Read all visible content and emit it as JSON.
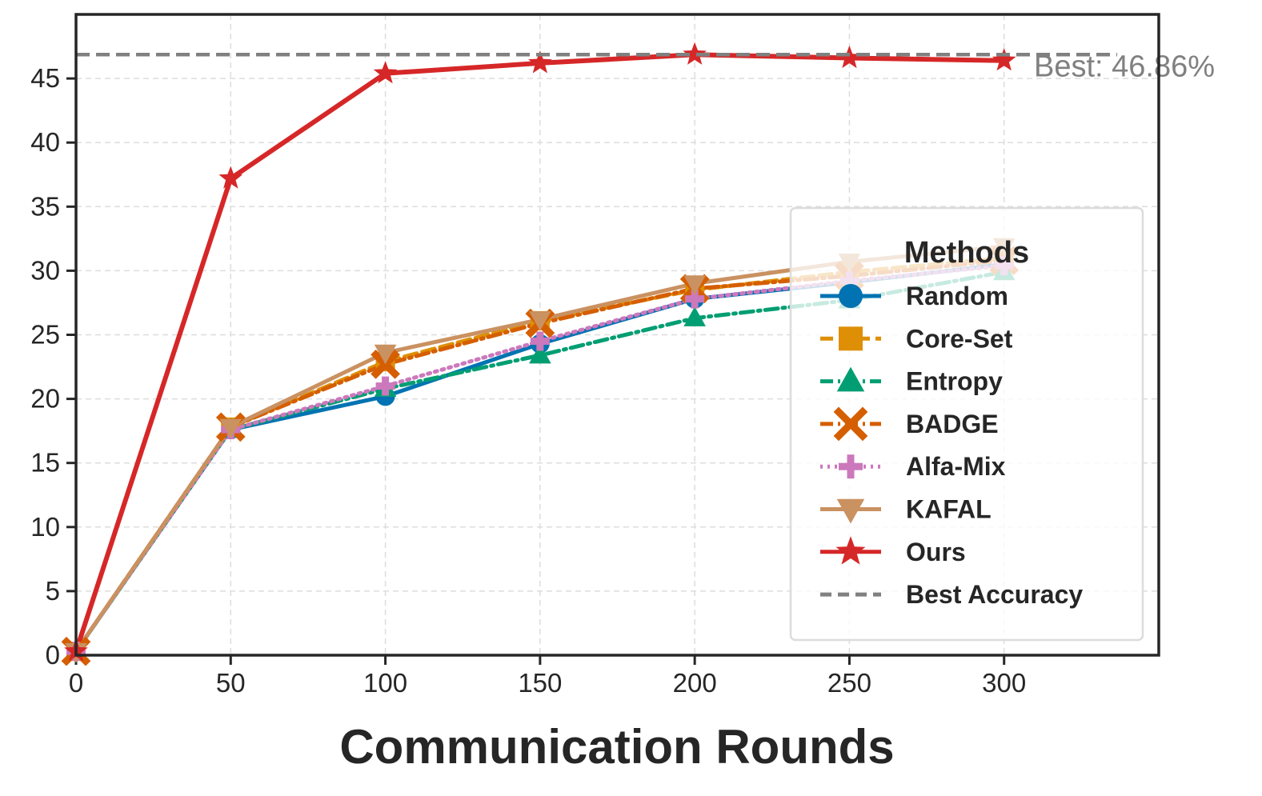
{
  "chart_data": {
    "type": "line",
    "title": "",
    "xlabel": "Communication Rounds",
    "ylabel": "",
    "xlim": [
      0,
      350
    ],
    "ylim": [
      0,
      50
    ],
    "xticks": [
      0,
      50,
      100,
      150,
      200,
      250,
      300
    ],
    "yticks": [
      0,
      5,
      10,
      15,
      20,
      25,
      30,
      35,
      40,
      45
    ],
    "grid": true,
    "x": [
      0,
      50,
      100,
      150,
      200,
      250,
      300
    ],
    "series": [
      {
        "name": "Random",
        "color": "#0173b2",
        "marker": "circle",
        "dash": "solid",
        "values": [
          0.3,
          17.6,
          20.2,
          24.3,
          27.8,
          29.1,
          30.5
        ]
      },
      {
        "name": "Core-Set",
        "color": "#de8f05",
        "marker": "square",
        "dash": "dashed",
        "values": [
          0.3,
          17.8,
          22.9,
          26.1,
          28.5,
          29.9,
          31.0
        ]
      },
      {
        "name": "Entropy",
        "color": "#029e73",
        "marker": "triangle-up",
        "dash": "dashdot",
        "values": [
          0.3,
          17.6,
          20.8,
          23.4,
          26.3,
          27.7,
          29.9
        ]
      },
      {
        "name": "BADGE",
        "color": "#d55e00",
        "marker": "x",
        "dash": "dashdot",
        "values": [
          0.3,
          17.8,
          22.7,
          25.9,
          28.6,
          29.6,
          30.8
        ]
      },
      {
        "name": "Alfa-Mix",
        "color": "#cc78bc",
        "marker": "plus",
        "dash": "dotted",
        "values": [
          0.3,
          17.6,
          21.0,
          24.5,
          27.8,
          29.2,
          30.4
        ]
      },
      {
        "name": "KAFAL",
        "color": "#ca9161",
        "marker": "triangle-down",
        "dash": "solid",
        "values": [
          0.3,
          17.8,
          23.6,
          26.2,
          29.0,
          30.7,
          31.9
        ]
      },
      {
        "name": "Ours",
        "color": "#d62728",
        "marker": "star",
        "dash": "solid",
        "values": [
          0.3,
          37.2,
          45.4,
          46.2,
          46.86,
          46.6,
          46.4
        ]
      }
    ],
    "best_accuracy": {
      "name": "Best Accuracy",
      "value": 46.86,
      "color": "#808080",
      "label": "Best: 46.86%"
    },
    "legend": {
      "title": "Methods",
      "location": "center-right"
    }
  }
}
